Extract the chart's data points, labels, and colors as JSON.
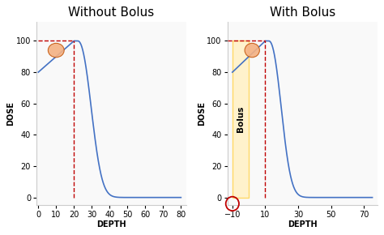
{
  "title_left": "Without Bolus",
  "title_right": "With Bolus",
  "xlabel": "DEPTH",
  "ylabel": "DOSE",
  "left_xlim": [
    -1,
    83
  ],
  "right_xlim": [
    -13,
    78
  ],
  "ylim": [
    -5,
    112
  ],
  "left_xticks": [
    0,
    10,
    20,
    30,
    40,
    50,
    60,
    70,
    80
  ],
  "right_xticks": [
    -10,
    10,
    30,
    50,
    70
  ],
  "yticks": [
    0,
    20,
    40,
    60,
    80,
    100
  ],
  "curve_color": "#4472C4",
  "dashed_color": "#C00000",
  "bolus_fill_color": "#FFF2CC",
  "bolus_edge_color": "#FFD966",
  "ellipse_color": "#F4B183",
  "ellipse_edge_color": "#C55A11",
  "panel_bg": "#F9F9F9",
  "figure_bg": "#FFFFFF",
  "title_fontsize": 11,
  "axis_label_fontsize": 7,
  "tick_fontsize": 7,
  "panel_border_color": "#CCCCCC"
}
